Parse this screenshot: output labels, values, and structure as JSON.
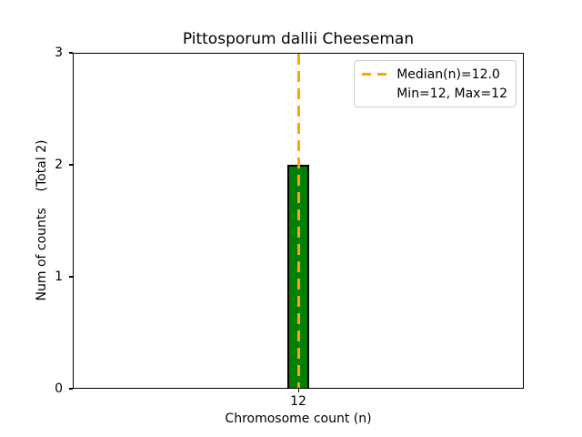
{
  "chart_data": {
    "type": "bar",
    "title": "Pittosporum dallii Cheeseman",
    "xlabel": "Chromosome count (n)",
    "ylabel": "Num of counts    (Total 2)",
    "categories": [
      "12"
    ],
    "values": [
      2
    ],
    "x_tick_labels": [
      "12"
    ],
    "y_ticks": [
      0,
      1,
      2,
      3
    ],
    "ylim": [
      0,
      3
    ],
    "grid": false,
    "stats": {
      "total_counts": 2,
      "median_n": 12.0,
      "min_n": 12,
      "max_n": 12
    },
    "median_line": {
      "x": 12,
      "style": "dashed",
      "orientation": "vertical"
    },
    "legend": {
      "position": "upper-right",
      "entries": [
        {
          "label": "Median(n)=12.0",
          "handle": "dashed-line"
        },
        {
          "label": "Min=12, Max=12",
          "handle": "none"
        }
      ]
    },
    "colors": {
      "bar_fill": "#008000",
      "bar_edge": "#000000",
      "median_line": "#FFA500",
      "axes": "#000000",
      "background": "#FFFFFF",
      "legend_border": "#CCCCCC"
    }
  }
}
